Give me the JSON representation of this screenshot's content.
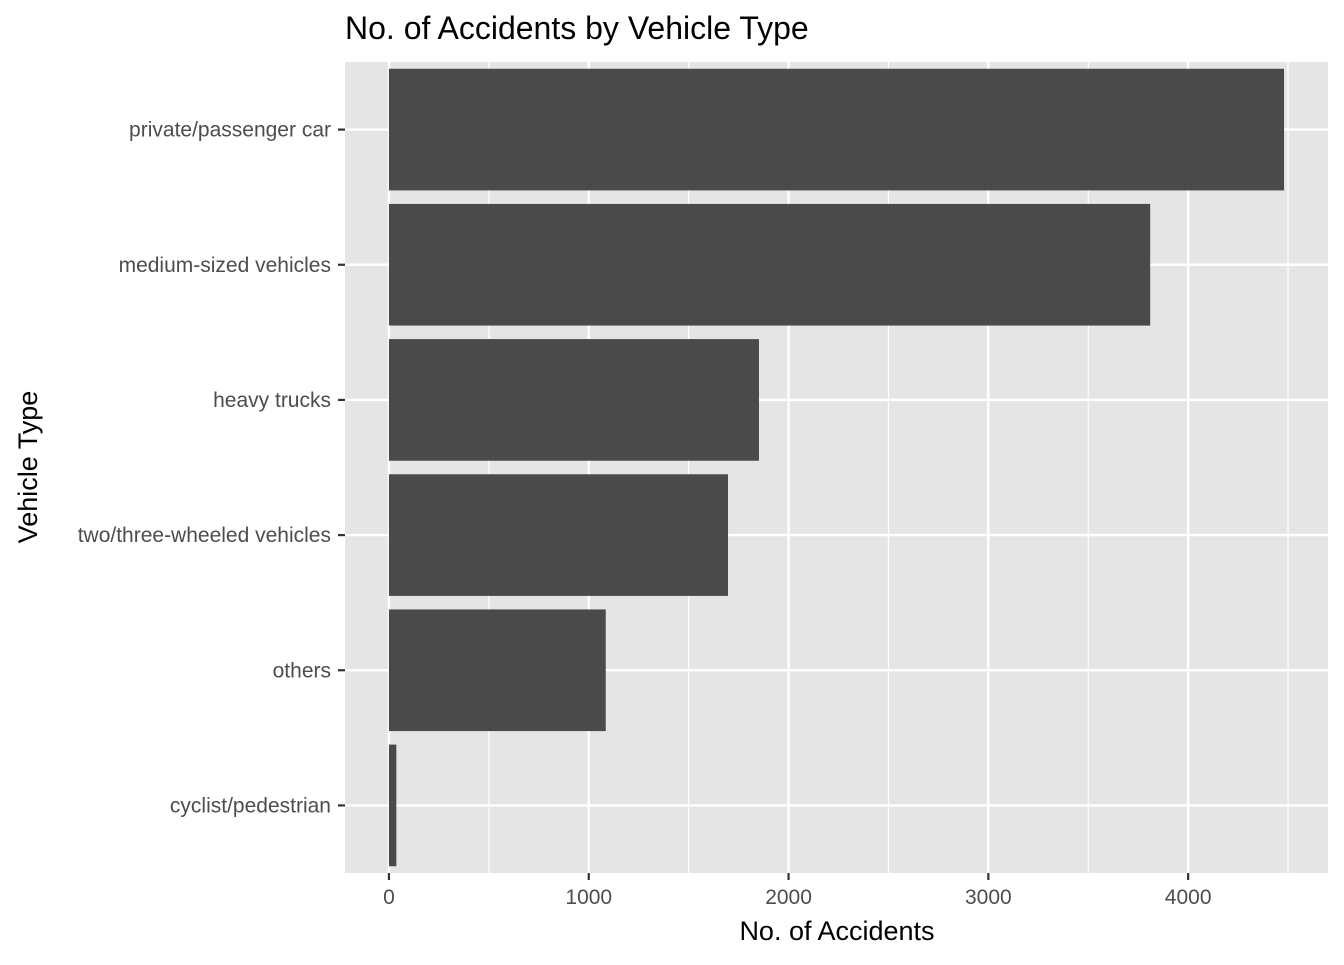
{
  "chart_data": {
    "type": "bar",
    "orientation": "horizontal",
    "title": "No. of Accidents by Vehicle Type",
    "xlabel": "No. of Accidents",
    "ylabel": "Vehicle Type",
    "categories": [
      "private/passenger car",
      "medium-sized vehicles",
      "heavy trucks",
      "two/three-wheeled vehicles",
      "others",
      "cyclist/pedestrian"
    ],
    "values": [
      4480,
      3810,
      1852,
      1697,
      1085,
      37
    ],
    "xlim": [
      -220,
      4700
    ],
    "x_ticks": [
      0,
      1000,
      2000,
      3000,
      4000
    ],
    "x_minor_ticks": [
      500,
      1500,
      2500,
      3500,
      4500
    ],
    "grid": true,
    "colors": {
      "bar": "#4a4a4a",
      "panel": "#e5e5e5",
      "grid": "#ffffff"
    }
  }
}
